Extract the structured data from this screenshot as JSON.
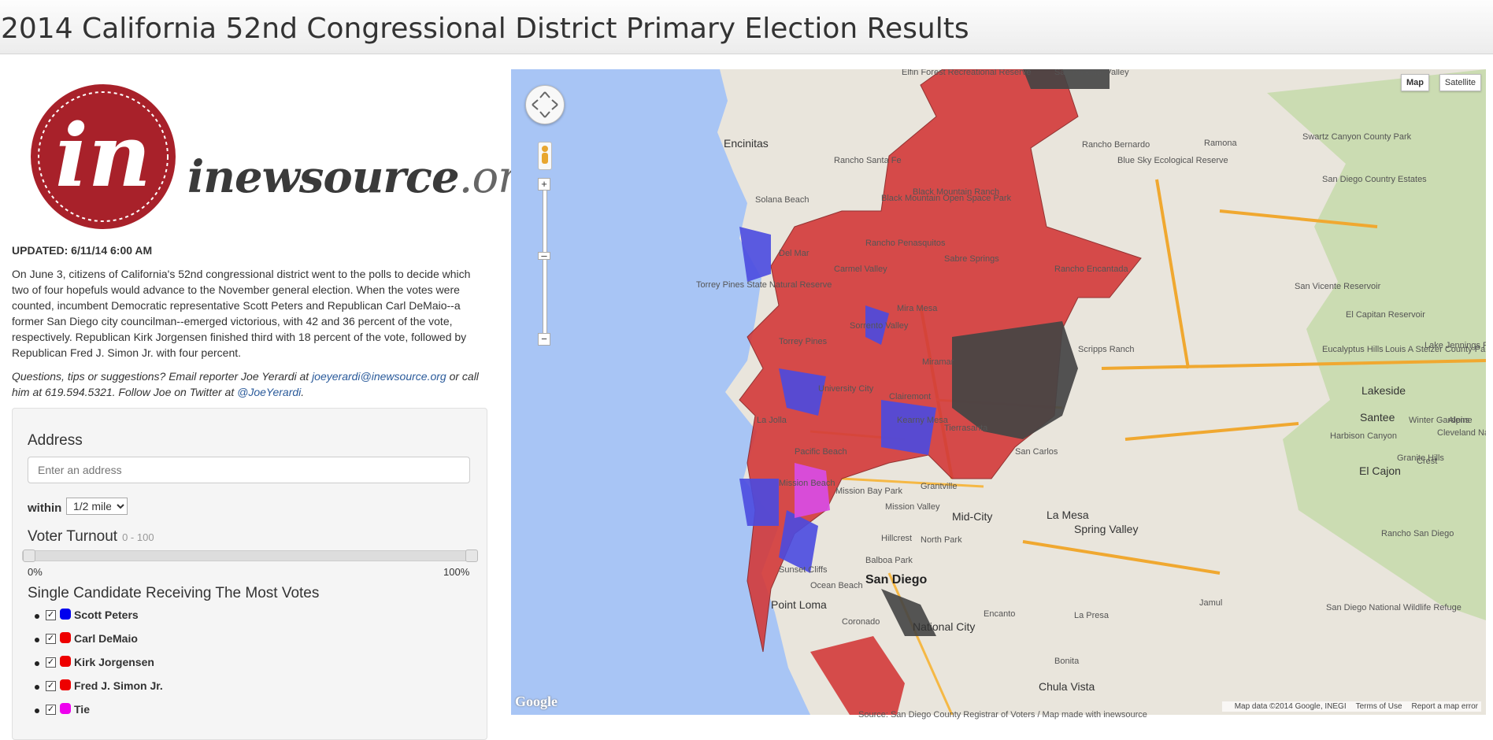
{
  "page_title": "2014 California 52nd Congressional District Primary Election Results",
  "logo": {
    "mark_letter": "in",
    "name": "inewsource",
    "tld": ".org"
  },
  "updated": "UPDATED: 6/11/14 6:00 AM",
  "intro": "On June 3, citizens of California's 52nd congressional district went to the polls to decide which two of four hopefuls would advance to the November general election. When the votes were counted, incumbent Democratic representative Scott Peters and Republican Carl DeMaio--a former San Diego city councilman--emerged victorious, with 42 and 36 percent of the vote, respectively. Republican Kirk Jorgensen finished third with 18 percent of the vote, followed by Republican Fred J. Simon Jr. with four percent.",
  "contact": {
    "prefix": "Questions, tips or suggestions? Email reporter Joe Yerardi at ",
    "email": "joeyerardi@inewsource.org",
    "middle": " or call him at 619.594.5321. Follow Joe on Twitter at ",
    "twitter": "@JoeYerardi",
    "suffix": "."
  },
  "filters": {
    "address_label": "Address",
    "address_placeholder": "Enter an address",
    "within_label": "within",
    "within_value": "1/2 mile",
    "turnout_label": "Voter Turnout",
    "turnout_range": "0 - 100",
    "turnout_min_label": "0%",
    "turnout_max_label": "100%",
    "turnout_low": 0,
    "turnout_high": 100,
    "candidates_label": "Single Candidate Receiving The Most Votes",
    "candidates": [
      {
        "name": "Scott Peters",
        "color": "#0000ee",
        "checked": true
      },
      {
        "name": "Carl DeMaio",
        "color": "#ee0000",
        "checked": true
      },
      {
        "name": "Kirk Jorgensen",
        "color": "#ee0000",
        "checked": true
      },
      {
        "name": "Fred J. Simon Jr.",
        "color": "#ee0000",
        "checked": true
      },
      {
        "name": "Tie",
        "color": "#ee00ee",
        "checked": true
      }
    ]
  },
  "map": {
    "type_map": "Map",
    "type_satellite": "Satellite",
    "google": "Google",
    "attribution": "Map data ©2014 Google, INEGI",
    "terms": "Terms of Use",
    "report": "Report a map error",
    "places": [
      {
        "name": "Elfin Forest Recreational Reserve",
        "cls": ""
      },
      {
        "name": "San Pasqual Valley",
        "cls": ""
      },
      {
        "name": "Encinitas",
        "cls": "big"
      },
      {
        "name": "Rancho Santa Fe",
        "cls": ""
      },
      {
        "name": "Rancho Bernardo",
        "cls": ""
      },
      {
        "name": "Ramona",
        "cls": ""
      },
      {
        "name": "Swartz Canyon County Park",
        "cls": ""
      },
      {
        "name": "Blue Sky Ecological Reserve",
        "cls": ""
      },
      {
        "name": "San Diego Country Estates",
        "cls": ""
      },
      {
        "name": "Solana Beach",
        "cls": ""
      },
      {
        "name": "Black Mountain Open Space Park",
        "cls": ""
      },
      {
        "name": "Del Mar",
        "cls": ""
      },
      {
        "name": "Carmel Valley",
        "cls": ""
      },
      {
        "name": "Torrey Pines State Natural Reserve",
        "cls": ""
      },
      {
        "name": "Mira Mesa",
        "cls": ""
      },
      {
        "name": "San Vicente Reservoir",
        "cls": ""
      },
      {
        "name": "El Capitan Reservoir",
        "cls": ""
      },
      {
        "name": "Torrey Pines",
        "cls": ""
      },
      {
        "name": "Scripps Ranch",
        "cls": ""
      },
      {
        "name": "Eucalyptus Hills",
        "cls": ""
      },
      {
        "name": "Lakeside",
        "cls": "big"
      },
      {
        "name": "Louis A Stelzer County Park",
        "cls": ""
      },
      {
        "name": "Lake Jennings Park",
        "cls": ""
      },
      {
        "name": "Miramar",
        "cls": ""
      },
      {
        "name": "La Jolla",
        "cls": ""
      },
      {
        "name": "Santee",
        "cls": "big"
      },
      {
        "name": "Winter Gardens",
        "cls": ""
      },
      {
        "name": "Alpine",
        "cls": ""
      },
      {
        "name": "Harbison Canyon",
        "cls": ""
      },
      {
        "name": "Cleveland National Forest",
        "cls": ""
      },
      {
        "name": "El Cajon",
        "cls": "big"
      },
      {
        "name": "Granite Hills",
        "cls": ""
      },
      {
        "name": "Crest",
        "cls": ""
      },
      {
        "name": "Mid-City",
        "cls": "big"
      },
      {
        "name": "La Mesa",
        "cls": "big"
      },
      {
        "name": "Spring Valley",
        "cls": "big"
      },
      {
        "name": "Rancho San Diego",
        "cls": ""
      },
      {
        "name": "Mission Bay Park",
        "cls": ""
      },
      {
        "name": "North Park",
        "cls": ""
      },
      {
        "name": "San Diego",
        "cls": "bigger"
      },
      {
        "name": "Point Loma",
        "cls": "big"
      },
      {
        "name": "Encanto",
        "cls": ""
      },
      {
        "name": "La Presa",
        "cls": ""
      },
      {
        "name": "Jamul",
        "cls": ""
      },
      {
        "name": "San Diego National Wildlife Refuge",
        "cls": ""
      },
      {
        "name": "National City",
        "cls": "big"
      },
      {
        "name": "Coronado",
        "cls": ""
      },
      {
        "name": "Bonita",
        "cls": ""
      },
      {
        "name": "Chula Vista",
        "cls": "big"
      },
      {
        "name": "Grantville",
        "cls": ""
      },
      {
        "name": "Kearny Mesa",
        "cls": ""
      },
      {
        "name": "Tierrasanta",
        "cls": ""
      },
      {
        "name": "San Carlos",
        "cls": ""
      },
      {
        "name": "Clairemont",
        "cls": ""
      },
      {
        "name": "University City",
        "cls": ""
      },
      {
        "name": "Sorrento Valley",
        "cls": ""
      },
      {
        "name": "Mission Valley",
        "cls": ""
      },
      {
        "name": "Rancho Penasquitos",
        "cls": ""
      },
      {
        "name": "Sabre Springs",
        "cls": ""
      },
      {
        "name": "Rancho Encantada",
        "cls": ""
      },
      {
        "name": "Mission Beach",
        "cls": ""
      },
      {
        "name": "Pacific Beach",
        "cls": ""
      },
      {
        "name": "Sunset Cliffs",
        "cls": ""
      },
      {
        "name": "Hillcrest",
        "cls": ""
      },
      {
        "name": "Balboa Park",
        "cls": ""
      },
      {
        "name": "Black Mountain Ranch",
        "cls": ""
      },
      {
        "name": "Ocean Beach",
        "cls": ""
      }
    ]
  },
  "source_note": "Source: San Diego County Registrar of Voters / Map made with inewsource"
}
